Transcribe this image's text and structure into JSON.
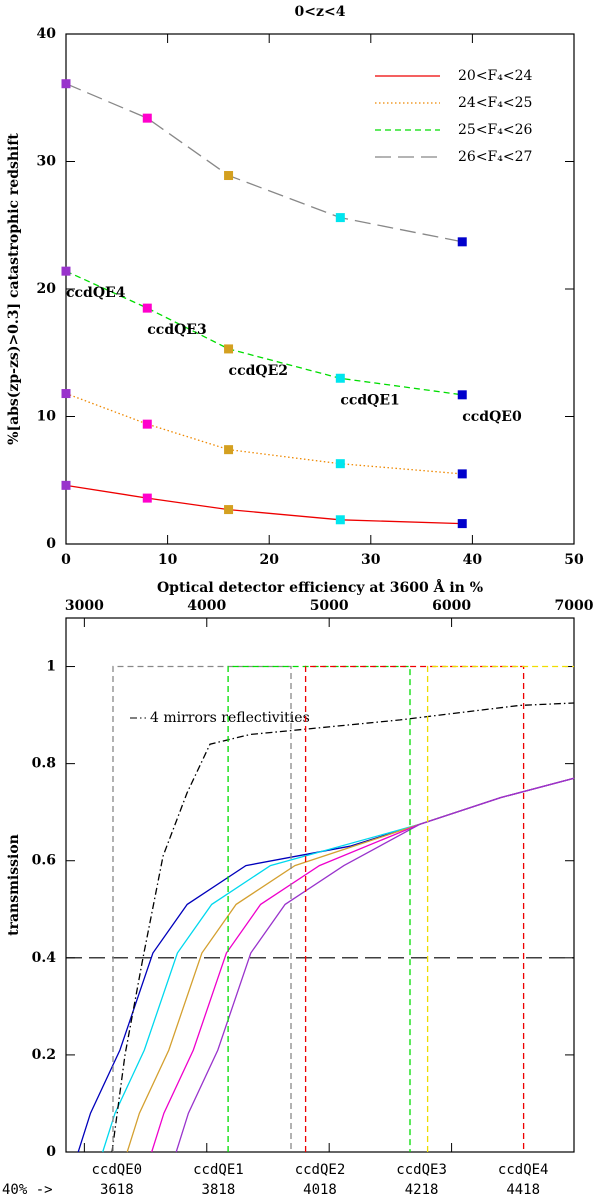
{
  "chart_data": [
    {
      "type": "line",
      "title": "0<z<4",
      "xlabel": "Optical detector efficiency at 3600 Å in %",
      "ylabel": "%[abs(zp-zs)>0.3] catastrophic redshift",
      "x": [
        0,
        8,
        16,
        27,
        39
      ],
      "series": [
        {
          "name": "20<F₄<24",
          "color": "#ee0000",
          "dash": "solid",
          "values": [
            4.6,
            3.6,
            2.7,
            1.9,
            1.6
          ]
        },
        {
          "name": "24<F₄<25",
          "color": "#ee8800",
          "dash": "dotted",
          "values": [
            11.8,
            9.4,
            7.4,
            6.3,
            5.5
          ]
        },
        {
          "name": "25<F₄<26",
          "color": "#00dd00",
          "dash": "dashed",
          "values": [
            21.4,
            18.5,
            15.3,
            13.0,
            11.7
          ]
        },
        {
          "name": "26<F₄<27",
          "color": "#888888",
          "dash": "longdash",
          "values": [
            36.1,
            33.4,
            28.9,
            25.6,
            23.7
          ]
        }
      ],
      "markers": true,
      "marker_colors": [
        "#9933cc",
        "#ff00cc",
        "#d4a020",
        "#00e5ee",
        "#0000cc"
      ],
      "point_labels": [
        "ccdQE4",
        "ccdQE3",
        "ccdQE2",
        "ccdQE1",
        "ccdQE0"
      ],
      "xlim": [
        0,
        50
      ],
      "xticks": [
        0,
        10,
        20,
        30,
        40,
        50
      ],
      "ylim": [
        0,
        40
      ],
      "yticks": [
        0,
        10,
        20,
        30,
        40
      ],
      "legend": "upper right",
      "grid": false
    },
    {
      "type": "line",
      "ylabel": "transmission",
      "xaxis_position": "top",
      "series": [
        {
          "name": "ccdQE0",
          "cut": 3618,
          "color": "#0000bb",
          "dash": "solid",
          "x": [
            2950,
            3050,
            3290,
            3560,
            3840,
            4320,
            5170,
            5740,
            6400,
            7000
          ],
          "values": [
            0,
            0.08,
            0.21,
            0.41,
            0.51,
            0.59,
            0.63,
            0.675,
            0.73,
            0.77
          ]
        },
        {
          "name": "ccdQE1",
          "cut": 3818,
          "color": "#00d8ee",
          "dash": "solid",
          "x": [
            3150,
            3250,
            3490,
            3760,
            4040,
            4520,
            5740,
            6400,
            7000
          ],
          "values": [
            0,
            0.08,
            0.21,
            0.41,
            0.51,
            0.59,
            0.675,
            0.73,
            0.77
          ]
        },
        {
          "name": "ccdQE2",
          "cut": 4018,
          "color": "#d4a030",
          "dash": "solid",
          "x": [
            3350,
            3450,
            3690,
            3960,
            4240,
            4720,
            5740,
            6400,
            7000
          ],
          "values": [
            0,
            0.08,
            0.21,
            0.41,
            0.51,
            0.59,
            0.675,
            0.73,
            0.77
          ]
        },
        {
          "name": "ccdQE3",
          "cut": 4218,
          "color": "#ee00cc",
          "dash": "solid",
          "x": [
            3550,
            3650,
            3890,
            4160,
            4440,
            4920,
            5740,
            6400,
            7000
          ],
          "values": [
            0,
            0.08,
            0.21,
            0.41,
            0.51,
            0.59,
            0.675,
            0.73,
            0.77
          ]
        },
        {
          "name": "ccdQE4",
          "cut": 4418,
          "color": "#9933cc",
          "dash": "solid",
          "x": [
            3750,
            3850,
            4090,
            4360,
            4640,
            5120,
            5740,
            6400,
            7000
          ],
          "values": [
            0,
            0.08,
            0.21,
            0.41,
            0.51,
            0.59,
            0.675,
            0.73,
            0.77
          ]
        },
        {
          "name": "4 mirrors reflectivities",
          "color": "#000000",
          "dash": "dashdot",
          "x": [
            3226,
            3332,
            3479,
            3643,
            3839,
            4026,
            4353,
            4762,
            5579,
            6232,
            6559,
            7000
          ],
          "values": [
            0,
            0.2,
            0.4,
            0.61,
            0.74,
            0.84,
            0.86,
            0.87,
            0.89,
            0.91,
            0.92,
            0.925
          ]
        },
        {
          "color": "#888888",
          "dash": "dashed",
          "x": [
            3234,
            3234,
            4688,
            4688
          ],
          "values": [
            0,
            1,
            1,
            0
          ]
        },
        {
          "color": "#00dd00",
          "dash": "dashed",
          "x": [
            4174,
            4174,
            5660,
            5660
          ],
          "values": [
            0,
            1,
            1,
            0
          ]
        },
        {
          "color": "#ee0000",
          "dash": "dashed",
          "x": [
            4807,
            4807,
            6588,
            6588
          ],
          "values": [
            0,
            1,
            1,
            0
          ]
        },
        {
          "color": "#eedd00",
          "dash": "dashed",
          "x": [
            5804,
            5804,
            7000
          ],
          "values": [
            0,
            1,
            1
          ]
        }
      ],
      "hline": 0.4,
      "cut_label": "40% ->",
      "xlim": [
        2850,
        7000
      ],
      "xticks": [
        3000,
        4000,
        5000,
        6000,
        7000
      ],
      "ylim": [
        0,
        1.1
      ],
      "yticks": [
        0,
        0.2,
        0.4,
        0.6,
        0.8,
        1
      ],
      "legend": "none",
      "grid": false
    }
  ]
}
